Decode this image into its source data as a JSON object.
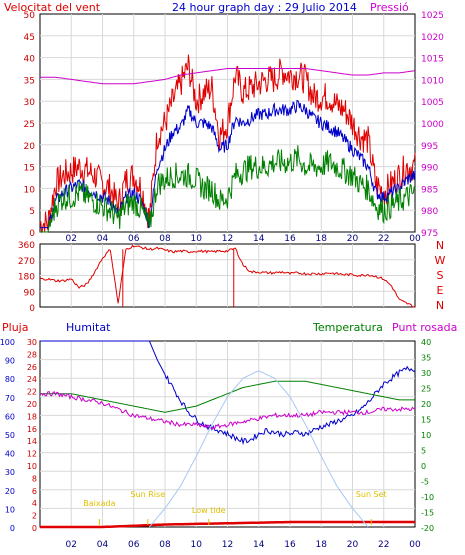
{
  "page": {
    "title": "24 hour graph day : 29 Julio 2014"
  },
  "colors": {
    "red": "#e00000",
    "blue": "#0000cc",
    "green": "#008000",
    "magenta": "#cc00cc",
    "lightblue": "#a8c8f0",
    "yellow": "#e0c000",
    "grid": "#d8d8d8"
  },
  "chart_data": [
    {
      "type": "line",
      "labels": {
        "left_title": "Velocitat del vent",
        "right_title": "Pressió"
      },
      "x_ticks": [
        "02",
        "04",
        "06",
        "08",
        "10",
        "12",
        "14",
        "16",
        "18",
        "20",
        "22",
        "00"
      ],
      "y_left_ticks": [
        0,
        5,
        10,
        15,
        20,
        25,
        30,
        35,
        40,
        45,
        50
      ],
      "y_right_ticks": [
        975,
        980,
        985,
        990,
        995,
        1000,
        1005,
        1010,
        1015,
        1020,
        1025
      ],
      "ylim_left": [
        0,
        50
      ],
      "ylim_right": [
        975,
        1025
      ],
      "grid": true,
      "series": [
        {
          "id": "gust",
          "color": "red",
          "x": [
            0,
            0.5,
            1,
            1.5,
            2,
            2.5,
            3,
            3.5,
            4,
            4.5,
            5,
            5.5,
            6,
            6.5,
            7,
            7.5,
            8,
            8.5,
            9,
            9.5,
            10,
            10.5,
            11,
            11.5,
            12,
            12.5,
            13,
            13.5,
            14,
            14.5,
            15,
            15.5,
            16,
            16.5,
            17,
            17.5,
            18,
            18.5,
            19,
            19.5,
            20,
            20.5,
            21,
            21.5,
            22,
            22.5,
            23,
            23.5,
            24
          ],
          "values": [
            2,
            2,
            11,
            13,
            14,
            15,
            14,
            13,
            11,
            10,
            6,
            12,
            13,
            10,
            3,
            22,
            25,
            30,
            34,
            38,
            30,
            32,
            33,
            22,
            25,
            36,
            32,
            33,
            34,
            35,
            35,
            37,
            36,
            36,
            35,
            31,
            31,
            31,
            29,
            28,
            25,
            22,
            21,
            11,
            9,
            11,
            13,
            15,
            15
          ]
        },
        {
          "id": "wind",
          "color": "blue",
          "x": [
            0,
            0.5,
            1,
            1.5,
            2,
            2.5,
            3,
            3.5,
            4,
            4.5,
            5,
            5.5,
            6,
            6.5,
            7,
            7.5,
            8,
            8.5,
            9,
            9.5,
            10,
            10.5,
            11,
            11.5,
            12,
            12.5,
            13,
            13.5,
            14,
            14.5,
            15,
            15.5,
            16,
            16.5,
            17,
            17.5,
            18,
            18.5,
            19,
            19.5,
            20,
            20.5,
            21,
            21.5,
            22,
            22.5,
            23,
            23.5,
            24
          ],
          "values": [
            1,
            1,
            7,
            9,
            10,
            11,
            10,
            9,
            8,
            7,
            4,
            8,
            9,
            7,
            2,
            15,
            19,
            23,
            24,
            28,
            25,
            25,
            24,
            19,
            20,
            26,
            25,
            26,
            27,
            27,
            28,
            28,
            28,
            29,
            28,
            26,
            25,
            24,
            23,
            21,
            19,
            17,
            15,
            9,
            8,
            9,
            10,
            12,
            13
          ]
        },
        {
          "id": "avg",
          "color": "green",
          "x": [
            0,
            0.5,
            1,
            1.5,
            2,
            2.5,
            3,
            3.5,
            4,
            4.5,
            5,
            5.5,
            6,
            6.5,
            7,
            7.5,
            8,
            8.5,
            9,
            9.5,
            10,
            10.5,
            11,
            11.5,
            12,
            12.5,
            13,
            13.5,
            14,
            14.5,
            15,
            15.5,
            16,
            16.5,
            17,
            17.5,
            18,
            18.5,
            19,
            19.5,
            20,
            20.5,
            21,
            21.5,
            22,
            22.5,
            23,
            23.5,
            24
          ],
          "values": [
            0,
            0,
            6,
            8,
            8,
            9,
            8,
            7,
            6,
            5,
            3,
            6,
            7,
            5,
            1,
            11,
            12,
            13,
            13,
            13,
            12,
            10,
            10,
            7,
            8,
            13,
            14,
            15,
            15,
            15,
            16,
            16,
            16,
            17,
            15,
            15,
            15,
            16,
            15,
            14,
            13,
            11,
            10,
            6,
            5,
            6,
            7,
            8,
            9
          ]
        },
        {
          "id": "pressure",
          "color": "magenta",
          "axis": "right",
          "x": [
            0,
            1,
            2,
            3,
            4,
            5,
            6,
            7,
            8,
            9,
            10,
            11,
            12,
            13,
            14,
            15,
            16,
            17,
            18,
            19,
            20,
            21,
            22,
            23,
            24
          ],
          "values": [
            1010.5,
            1010.5,
            1010,
            1009.5,
            1009,
            1009,
            1009,
            1009.5,
            1010,
            1011,
            1011.5,
            1012,
            1012.5,
            1012.5,
            1012.5,
            1012.5,
            1012.5,
            1012.5,
            1012,
            1011.5,
            1011,
            1011,
            1011.5,
            1011.5,
            1012
          ]
        }
      ]
    },
    {
      "type": "line",
      "y_ticks": [
        0,
        90,
        180,
        270,
        360
      ],
      "ylim": [
        0,
        360
      ],
      "direction_labels": [
        "N",
        "W",
        "S",
        "E",
        "N"
      ],
      "grid": true,
      "series": [
        {
          "id": "direction",
          "color": "red",
          "x": [
            0,
            0.5,
            1,
            1.5,
            2,
            2.5,
            3,
            3.5,
            4,
            4.5,
            5,
            5.5,
            6,
            6.5,
            7,
            7.5,
            8,
            8.5,
            9,
            9.5,
            10,
            10.5,
            11,
            11.5,
            12,
            12.5,
            13,
            13.5,
            14,
            14.5,
            15,
            15.5,
            16,
            16.5,
            17,
            17.5,
            18,
            18.5,
            19,
            19.5,
            20,
            20.5,
            21,
            21.5,
            22,
            22.5,
            23,
            23.5,
            24
          ],
          "values": [
            160,
            160,
            150,
            150,
            160,
            110,
            130,
            200,
            280,
            330,
            20,
            330,
            350,
            340,
            330,
            335,
            325,
            315,
            320,
            315,
            320,
            318,
            315,
            320,
            320,
            335,
            240,
            200,
            200,
            195,
            195,
            200,
            190,
            195,
            190,
            190,
            190,
            195,
            190,
            185,
            185,
            180,
            185,
            175,
            160,
            120,
            40,
            20,
            0
          ]
        }
      ]
    },
    {
      "type": "line",
      "labels": {
        "pluja": "Pluja",
        "humitat": "Humitat",
        "temperatura": "Temperatura",
        "punt_rosada": "Punt rosada"
      },
      "x_ticks": [
        "02",
        "04",
        "06",
        "08",
        "10",
        "12",
        "14",
        "16",
        "18",
        "20",
        "22",
        "00"
      ],
      "y_humidity_ticks": [
        0,
        10,
        20,
        30,
        40,
        50,
        60,
        70,
        80,
        90,
        100
      ],
      "y_rain_ticks": [
        0,
        2,
        4,
        6,
        8,
        10,
        12,
        14,
        16,
        18,
        20,
        22,
        24,
        26,
        28,
        30
      ],
      "y_temp_ticks": [
        -20,
        -15,
        -10,
        -5,
        0,
        5,
        10,
        15,
        20,
        25,
        30,
        35,
        40
      ],
      "ylim_humidity": [
        0,
        100
      ],
      "ylim_temp": [
        -20,
        40
      ],
      "ylim_rain": [
        0,
        30
      ],
      "annotations": [
        {
          "text": "Baixada",
          "x": 3.8
        },
        {
          "text": "Sun Rise",
          "x": 6.9
        },
        {
          "text": "Low tide",
          "x": 10.8
        },
        {
          "text": "Sun Set",
          "x": 21.2
        }
      ],
      "series": [
        {
          "id": "humidity",
          "color": "blue",
          "axis": "humidity",
          "x": [
            0,
            1,
            2,
            3,
            4,
            5,
            6,
            7,
            7.5,
            8,
            8.5,
            9,
            9.5,
            10,
            10.5,
            11,
            11.5,
            12,
            12.5,
            13,
            13.5,
            14,
            14.5,
            15,
            15.5,
            16,
            16.5,
            17,
            17.5,
            18,
            18.5,
            19,
            19.5,
            20,
            20.5,
            21,
            21.5,
            22,
            22.5,
            23,
            23.5,
            24
          ],
          "values": [
            100,
            100,
            100,
            100,
            100,
            100,
            100,
            100,
            90,
            82,
            75,
            68,
            62,
            58,
            55,
            53,
            52,
            50,
            48,
            46,
            47,
            50,
            52,
            51,
            50,
            50,
            51,
            50,
            52,
            54,
            55,
            57,
            58,
            60,
            63,
            67,
            72,
            77,
            80,
            83,
            85,
            85
          ]
        },
        {
          "id": "temperature",
          "color": "green",
          "axis": "temp",
          "x": [
            0,
            1,
            2,
            3,
            4,
            5,
            6,
            7,
            8,
            9,
            10,
            11,
            12,
            13,
            14,
            15,
            16,
            17,
            18,
            19,
            20,
            21,
            22,
            23,
            24
          ],
          "values": [
            23,
            23,
            23,
            22,
            21,
            20,
            19,
            18,
            17,
            18,
            19,
            21,
            23,
            25,
            26,
            27,
            27,
            27,
            26,
            25,
            24,
            23,
            22,
            21,
            21
          ]
        },
        {
          "id": "dewpoint",
          "color": "magenta",
          "axis": "temp",
          "x": [
            0,
            1,
            2,
            3,
            4,
            5,
            6,
            7,
            8,
            9,
            10,
            11,
            12,
            13,
            14,
            15,
            16,
            17,
            18,
            19,
            20,
            21,
            22,
            23,
            24
          ],
          "values": [
            23,
            23,
            22,
            21,
            20,
            18,
            16,
            15,
            14,
            13,
            13,
            12,
            13,
            14,
            15,
            16,
            16,
            16,
            17,
            17,
            17,
            17,
            18,
            18,
            18
          ]
        },
        {
          "id": "rain",
          "color": "red",
          "axis": "rain",
          "x": [
            0,
            2,
            4,
            6,
            7,
            8,
            10,
            12,
            14,
            16,
            18,
            20,
            22,
            24
          ],
          "values": [
            0,
            0,
            0,
            0.2,
            0.3,
            0.4,
            0.5,
            0.6,
            0.7,
            0.8,
            0.8,
            0.8,
            0.8,
            0.8
          ]
        },
        {
          "id": "solar",
          "color": "lightblue",
          "axis": "humidity",
          "x": [
            7,
            8,
            9,
            10,
            11,
            12,
            13,
            14,
            15,
            16,
            17,
            18,
            19,
            20,
            21
          ],
          "values": [
            0,
            10,
            22,
            38,
            55,
            70,
            80,
            84,
            80,
            70,
            55,
            38,
            22,
            10,
            0
          ]
        }
      ]
    }
  ]
}
